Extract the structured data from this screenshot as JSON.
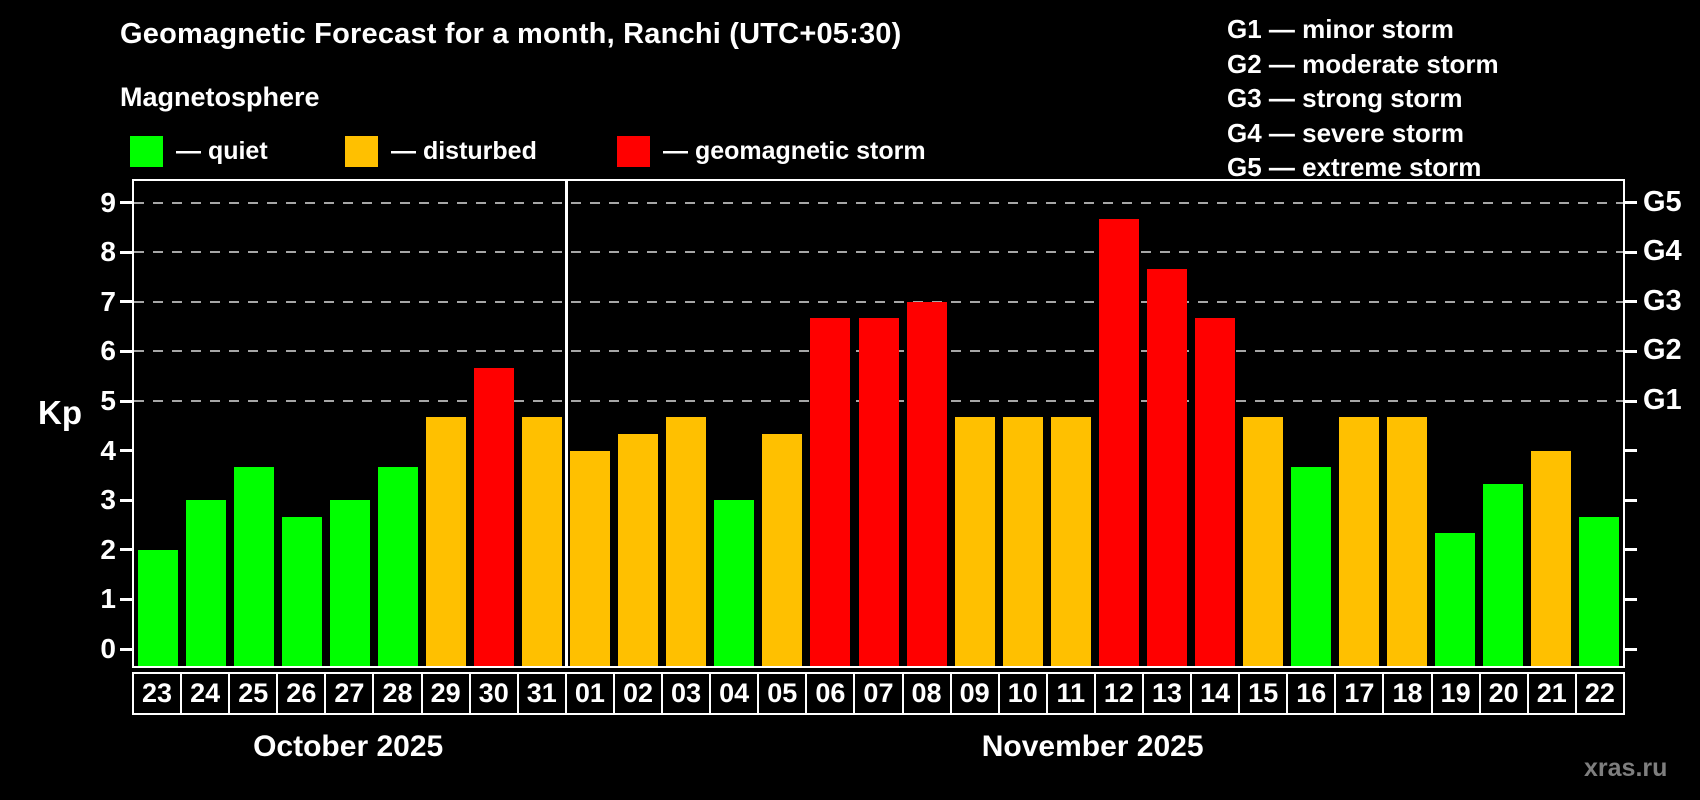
{
  "page": {
    "background": "#000000",
    "watermark": "xras.ru"
  },
  "header": {
    "title": "Geomagnetic Forecast for a month, Ranchi (UTC+05:30)",
    "subtitle": "Magnetosphere"
  },
  "colors": {
    "quiet": "#00ff00",
    "disturbed": "#ffc000",
    "storm": "#ff0000",
    "axis": "#ffffff",
    "grid": "#a6a6a6",
    "watermark": "#7e7e7e"
  },
  "legend": {
    "items": [
      {
        "status": "quiet",
        "label": "— quiet"
      },
      {
        "status": "disturbed",
        "label": "— disturbed"
      },
      {
        "status": "storm",
        "label": "— geomagnetic storm"
      }
    ]
  },
  "g_legend": {
    "lines": [
      "G1 — minor storm",
      "G2 — moderate storm",
      "G3 — strong storm",
      "G4 — severe storm",
      "G5 — extreme storm"
    ]
  },
  "axes": {
    "y_label": "Kp",
    "y_ticks": [
      0,
      1,
      2,
      3,
      4,
      5,
      6,
      7,
      8,
      9
    ],
    "right_scale": [
      {
        "label": "G1",
        "kp": 5
      },
      {
        "label": "G2",
        "kp": 6
      },
      {
        "label": "G3",
        "kp": 7
      },
      {
        "label": "G4",
        "kp": 8
      },
      {
        "label": "G5",
        "kp": 9
      }
    ],
    "months": [
      {
        "label": "October 2025",
        "days": 9
      },
      {
        "label": "November 2025",
        "days": 22
      }
    ]
  },
  "chart_data": {
    "type": "bar",
    "title": "Geomagnetic Forecast for a month, Ranchi (UTC+05:30)",
    "ylabel": "Kp",
    "ylim": [
      0,
      9
    ],
    "grid": "horizontal dashed lines at Kp 5-9 (G1-G5 levels)",
    "legend_position": "top-left statuses, top-right G-scale",
    "y_gridlines": [
      5,
      6,
      7,
      8,
      9
    ],
    "bars": [
      {
        "month": "October 2025",
        "day": "23",
        "kp": 2.0,
        "status": "quiet"
      },
      {
        "month": "October 2025",
        "day": "24",
        "kp": 3.0,
        "status": "quiet"
      },
      {
        "month": "October 2025",
        "day": "25",
        "kp": 3.67,
        "status": "quiet"
      },
      {
        "month": "October 2025",
        "day": "26",
        "kp": 2.67,
        "status": "quiet"
      },
      {
        "month": "October 2025",
        "day": "27",
        "kp": 3.0,
        "status": "quiet"
      },
      {
        "month": "October 2025",
        "day": "28",
        "kp": 3.67,
        "status": "quiet"
      },
      {
        "month": "October 2025",
        "day": "29",
        "kp": 4.67,
        "status": "disturbed"
      },
      {
        "month": "October 2025",
        "day": "30",
        "kp": 5.67,
        "status": "storm"
      },
      {
        "month": "October 2025",
        "day": "31",
        "kp": 4.67,
        "status": "disturbed"
      },
      {
        "month": "November 2025",
        "day": "01",
        "kp": 4.0,
        "status": "disturbed"
      },
      {
        "month": "November 2025",
        "day": "02",
        "kp": 4.33,
        "status": "disturbed"
      },
      {
        "month": "November 2025",
        "day": "03",
        "kp": 4.67,
        "status": "disturbed"
      },
      {
        "month": "November 2025",
        "day": "04",
        "kp": 3.0,
        "status": "quiet"
      },
      {
        "month": "November 2025",
        "day": "05",
        "kp": 4.33,
        "status": "disturbed"
      },
      {
        "month": "November 2025",
        "day": "06",
        "kp": 6.67,
        "status": "storm"
      },
      {
        "month": "November 2025",
        "day": "07",
        "kp": 6.67,
        "status": "storm"
      },
      {
        "month": "November 2025",
        "day": "08",
        "kp": 7.0,
        "status": "storm"
      },
      {
        "month": "November 2025",
        "day": "09",
        "kp": 4.67,
        "status": "disturbed"
      },
      {
        "month": "November 2025",
        "day": "10",
        "kp": 4.67,
        "status": "disturbed"
      },
      {
        "month": "November 2025",
        "day": "11",
        "kp": 4.67,
        "status": "disturbed"
      },
      {
        "month": "November 2025",
        "day": "12",
        "kp": 8.67,
        "status": "storm"
      },
      {
        "month": "November 2025",
        "day": "13",
        "kp": 7.67,
        "status": "storm"
      },
      {
        "month": "November 2025",
        "day": "14",
        "kp": 6.67,
        "status": "storm"
      },
      {
        "month": "November 2025",
        "day": "15",
        "kp": 4.67,
        "status": "disturbed"
      },
      {
        "month": "November 2025",
        "day": "16",
        "kp": 3.67,
        "status": "quiet"
      },
      {
        "month": "November 2025",
        "day": "17",
        "kp": 4.67,
        "status": "disturbed"
      },
      {
        "month": "November 2025",
        "day": "18",
        "kp": 4.67,
        "status": "disturbed"
      },
      {
        "month": "November 2025",
        "day": "19",
        "kp": 2.33,
        "status": "quiet"
      },
      {
        "month": "November 2025",
        "day": "20",
        "kp": 3.33,
        "status": "quiet"
      },
      {
        "month": "November 2025",
        "day": "21",
        "kp": 4.0,
        "status": "disturbed"
      },
      {
        "month": "November 2025",
        "day": "22",
        "kp": 2.67,
        "status": "quiet"
      }
    ]
  }
}
